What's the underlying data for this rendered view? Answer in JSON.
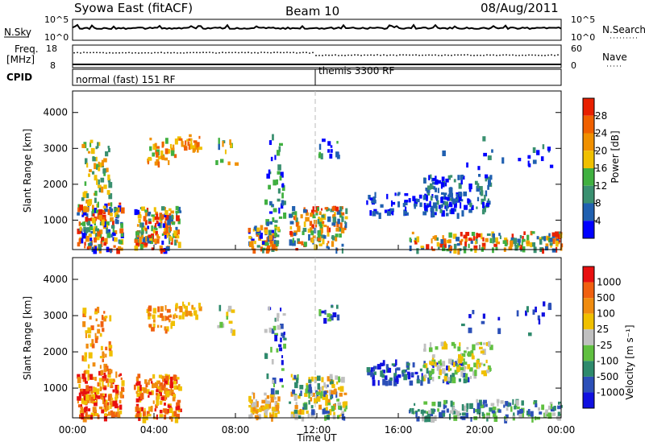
{
  "header": {
    "title": "Syowa East (fitACF)",
    "beam": "Beam 10",
    "date": "08/Aug/2011"
  },
  "sky_panel": {
    "left_label": "N.Sky",
    "right_label": "N.Search",
    "tick_top": "10^5",
    "tick_bottom": "10^0"
  },
  "freq_panel": {
    "left_label_1": "Freq.",
    "left_label_2": "[MHz]",
    "left_ticks": [
      "18",
      "8"
    ],
    "right_label": "Nave",
    "right_ticks": [
      "60",
      "0"
    ]
  },
  "cpid_panel": {
    "label": "CPID",
    "mode_1": "normal (fast) 151 RF",
    "mode_2": "themis 3300 RF"
  },
  "colors": {
    "power_scale": [
      "#0000ff",
      "#2060b0",
      "#3a9070",
      "#40b040",
      "#f0c000",
      "#f09000",
      "#f06000",
      "#e82000"
    ],
    "velocity_scale": [
      "#1010e0",
      "#2c50b8",
      "#2e8a6c",
      "#60c040",
      "#c0c0c0",
      "#f0c000",
      "#f08c10",
      "#f06010",
      "#e81010"
    ]
  },
  "chart_data": [
    {
      "type": "heatmap",
      "title": "",
      "ylabel": "Slant Range [km]",
      "xlabel": "",
      "ylim": [
        180,
        4600
      ],
      "yticks": [
        "1000",
        "2000",
        "3000",
        "4000"
      ],
      "colorbar_label": "Power [dB]",
      "colorbar_ticks": [
        "4",
        "8",
        "12",
        "16",
        "20",
        "24",
        "28"
      ]
    },
    {
      "type": "heatmap",
      "title": "",
      "ylabel": "Slant Range [km]",
      "xlabel": "Time UT",
      "ylim": [
        180,
        4600
      ],
      "yticks": [
        "1000",
        "2000",
        "3000",
        "4000"
      ],
      "xticks": [
        "00:00",
        "04:00",
        "08:00",
        "12:00",
        "16:00",
        "20:00",
        "00:00"
      ],
      "colorbar_label": "Velocity [m s⁻¹]",
      "colorbar_ticks": [
        "1000",
        "500",
        "100",
        "25",
        "-25",
        "-100",
        "-500",
        "-1000"
      ]
    }
  ]
}
